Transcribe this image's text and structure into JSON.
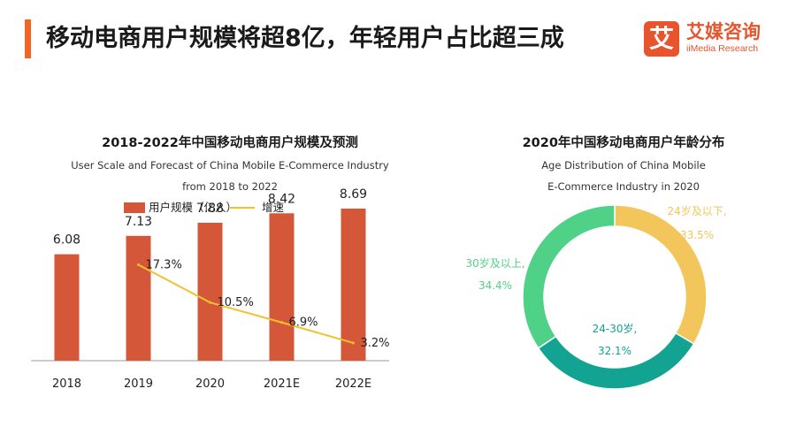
{
  "header": {
    "headline": "移动电商用户规模将超8亿，年轻用户占比超三成"
  },
  "logo": {
    "mark": "艾",
    "name_cn": "艾媒咨询",
    "name_en": "iiMedia Research"
  },
  "colors": {
    "accent": "#f26522",
    "bar": "#d4573a",
    "line": "#f2c12e",
    "pie_young": "#f2c65a",
    "pie_mid": "#12a393",
    "pie_old": "#4fd187"
  },
  "chart_data": [
    {
      "type": "bar",
      "title": "2018-2022年中国移动电商用户规模及预测",
      "subtitle_line1": "User Scale and Forecast of China Mobile E-Commerce Industry",
      "subtitle_line2": "from 2018 to 2022",
      "categories": [
        "2018",
        "2019",
        "2020",
        "2021E",
        "2022E"
      ],
      "series": [
        {
          "name": "用户规模（亿人）",
          "type": "bar",
          "values": [
            6.08,
            7.13,
            7.88,
            8.42,
            8.69
          ],
          "labels": [
            "6.08",
            "7.13",
            "7.88",
            "8.42",
            "8.69"
          ]
        },
        {
          "name": "增速",
          "type": "line",
          "values": [
            null,
            17.3,
            10.5,
            6.9,
            3.2
          ],
          "labels": [
            "",
            "17.3%",
            "10.5%",
            "6.9%",
            "3.2%"
          ]
        }
      ],
      "ylim": [
        0,
        10
      ],
      "y2lim": [
        0,
        26
      ],
      "grid": false,
      "legend": "top"
    },
    {
      "type": "pie",
      "variant": "donut",
      "title": "2020年中国移动电商用户年龄分布",
      "subtitle_line1": "Age Distribution of China Mobile",
      "subtitle_line2": "E-Commerce Industry in 2020",
      "slices": [
        {
          "label": "24岁及以下,",
          "value": 33.5,
          "display": "33.5%"
        },
        {
          "label": "24-30岁,",
          "value": 32.1,
          "display": "32.1%"
        },
        {
          "label": "30岁及以上,",
          "value": 34.4,
          "display": "34.4%"
        }
      ]
    }
  ]
}
